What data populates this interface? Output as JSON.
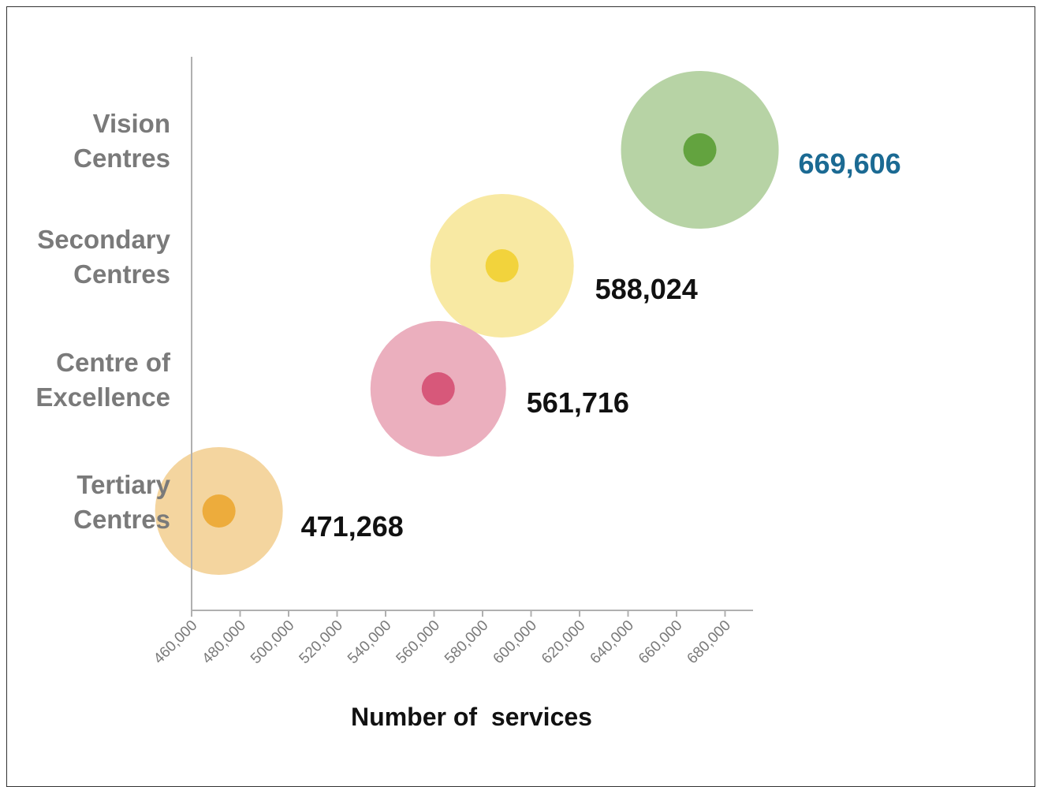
{
  "chart_data": {
    "type": "scatter",
    "title": "",
    "xlabel": "Number of  services",
    "ylabel": "",
    "xlim": [
      460000,
      690000
    ],
    "xticks": [
      460000,
      480000,
      500000,
      520000,
      540000,
      560000,
      580000,
      600000,
      620000,
      640000,
      660000,
      680000
    ],
    "xtick_labels": [
      "460,000",
      "480,000",
      "500,000",
      "520,000",
      "540,000",
      "560,000",
      "580,000",
      "600,000",
      "620,000",
      "640,000",
      "660,000",
      "680,000"
    ],
    "grid": false,
    "legend": "none",
    "points": [
      {
        "category_lines": [
          "Vision",
          "Centres"
        ],
        "x": 669606,
        "value_label": "669,606",
        "outer_color": "#b7d3a5",
        "inner_color": "#63a33f",
        "label_color": "#1b6a93"
      },
      {
        "category_lines": [
          "Secondary",
          "Centres"
        ],
        "x": 588024,
        "value_label": "588,024",
        "outer_color": "#f8e9a3",
        "inner_color": "#f2d33c",
        "label_color": "#111111"
      },
      {
        "category_lines": [
          "Centre of",
          "Excellence"
        ],
        "x": 561716,
        "value_label": "561,716",
        "outer_color": "#ebafbe",
        "inner_color": "#d7587a",
        "label_color": "#111111"
      },
      {
        "category_lines": [
          "Tertiary",
          "Centres"
        ],
        "x": 471268,
        "value_label": "471,268",
        "outer_color": "#f4d59f",
        "inner_color": "#edac3c",
        "label_color": "#111111"
      }
    ]
  }
}
